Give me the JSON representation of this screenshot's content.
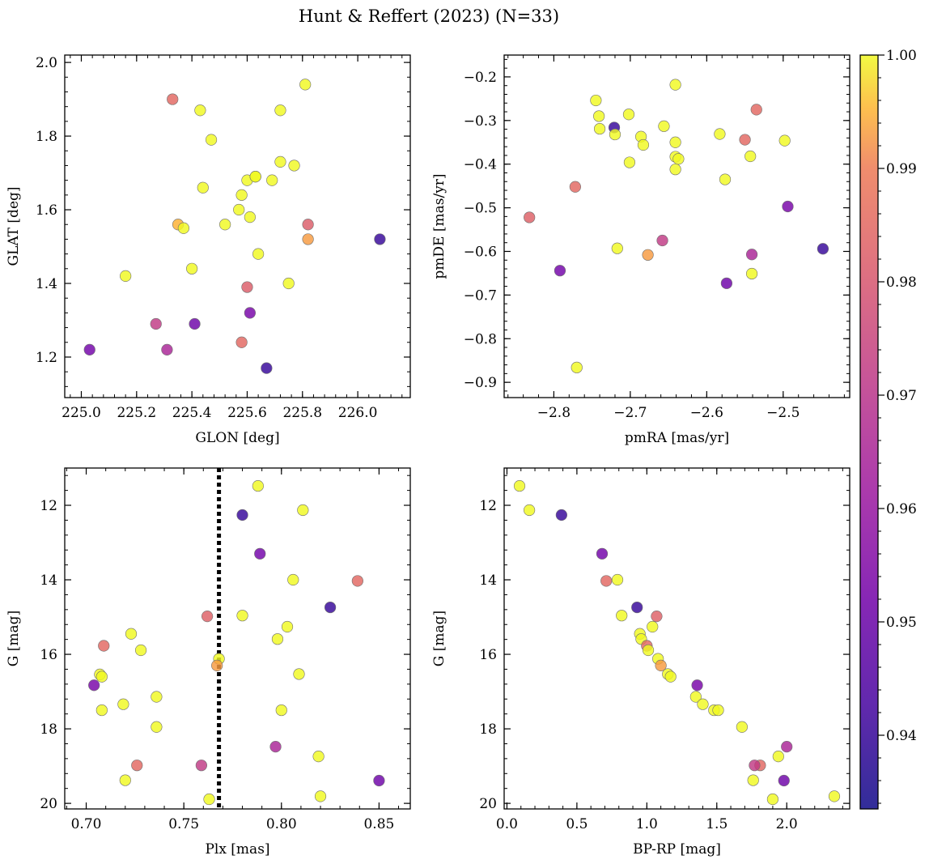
{
  "figure": {
    "title": "Hunt & Reffert (2023) (N=33)"
  },
  "colorbar": {
    "range": [
      0.9335,
      1.0
    ],
    "ticks": [
      0.94,
      0.95,
      0.96,
      0.97,
      0.98,
      0.99,
      1.0
    ],
    "tick_labels": [
      "0.94",
      "0.95",
      "0.96",
      "0.97",
      "0.98",
      "0.99",
      "1.00"
    ],
    "colormap": "plasma"
  },
  "chart_data": [
    {
      "type": "scatter",
      "title": "",
      "xlabel": "GLON [deg]",
      "ylabel": "GLAT [deg]",
      "xlim": [
        224.94,
        226.19
      ],
      "ylim": [
        1.09,
        2.02
      ],
      "yinvert": false,
      "xticks": [
        225.0,
        225.2,
        225.4,
        225.6,
        225.8,
        226.0
      ],
      "xtick_labels": [
        "225.0",
        "225.2",
        "225.4",
        "225.6",
        "225.8",
        "226.0"
      ],
      "yticks": [
        1.2,
        1.4,
        1.6,
        1.8,
        2.0
      ],
      "ytick_labels": [
        "1.2",
        "1.4",
        "1.6",
        "1.8",
        "2.0"
      ],
      "points": [
        {
          "x": 225.03,
          "y": 1.22,
          "c": 0.952
        },
        {
          "x": 225.16,
          "y": 1.42,
          "c": 1.0
        },
        {
          "x": 225.27,
          "y": 1.29,
          "c": 0.972
        },
        {
          "x": 225.31,
          "y": 1.22,
          "c": 0.965
        },
        {
          "x": 225.33,
          "y": 1.9,
          "c": 0.985
        },
        {
          "x": 225.35,
          "y": 1.56,
          "c": 0.995
        },
        {
          "x": 225.37,
          "y": 1.55,
          "c": 1.0
        },
        {
          "x": 225.4,
          "y": 1.44,
          "c": 1.0
        },
        {
          "x": 225.41,
          "y": 1.29,
          "c": 0.951
        },
        {
          "x": 225.43,
          "y": 1.87,
          "c": 1.0
        },
        {
          "x": 225.44,
          "y": 1.66,
          "c": 1.0
        },
        {
          "x": 225.47,
          "y": 1.79,
          "c": 1.0
        },
        {
          "x": 225.52,
          "y": 1.56,
          "c": 1.0
        },
        {
          "x": 225.57,
          "y": 1.6,
          "c": 1.0
        },
        {
          "x": 225.58,
          "y": 1.64,
          "c": 1.0
        },
        {
          "x": 225.58,
          "y": 1.24,
          "c": 0.985
        },
        {
          "x": 225.6,
          "y": 1.68,
          "c": 1.0
        },
        {
          "x": 225.6,
          "y": 1.39,
          "c": 0.982
        },
        {
          "x": 225.61,
          "y": 1.58,
          "c": 1.0
        },
        {
          "x": 225.61,
          "y": 1.32,
          "c": 0.953
        },
        {
          "x": 225.63,
          "y": 1.69,
          "c": 1.0
        },
        {
          "x": 225.63,
          "y": 1.69,
          "c": 1.0
        },
        {
          "x": 225.64,
          "y": 1.48,
          "c": 1.0
        },
        {
          "x": 225.67,
          "y": 1.17,
          "c": 0.94
        },
        {
          "x": 225.69,
          "y": 1.68,
          "c": 1.0
        },
        {
          "x": 225.72,
          "y": 1.87,
          "c": 1.0
        },
        {
          "x": 225.72,
          "y": 1.73,
          "c": 1.0
        },
        {
          "x": 225.75,
          "y": 1.4,
          "c": 1.0
        },
        {
          "x": 225.77,
          "y": 1.72,
          "c": 1.0
        },
        {
          "x": 225.81,
          "y": 1.94,
          "c": 1.0
        },
        {
          "x": 225.82,
          "y": 1.56,
          "c": 0.982
        },
        {
          "x": 225.82,
          "y": 1.52,
          "c": 0.993
        },
        {
          "x": 226.08,
          "y": 1.52,
          "c": 0.94
        }
      ]
    },
    {
      "type": "scatter",
      "title": "",
      "xlabel": "pmRA [mas/yr]",
      "ylabel": "pmDE [mas/yr]",
      "xlim": [
        -2.865,
        -2.413
      ],
      "ylim": [
        -0.935,
        -0.15
      ],
      "yinvert": false,
      "xticks": [
        -2.8,
        -2.7,
        -2.6,
        -2.5
      ],
      "xtick_labels": [
        "−2.8",
        "−2.7",
        "−2.6",
        "−2.5"
      ],
      "yticks": [
        -0.9,
        -0.8,
        -0.7,
        -0.6,
        -0.5,
        -0.4,
        -0.3,
        -0.2
      ],
      "ytick_labels": [
        "−0.9",
        "−0.8",
        "−0.7",
        "−0.6",
        "−0.5",
        "−0.4",
        "−0.3",
        "−0.2"
      ],
      "points": [
        {
          "x": -2.832,
          "y": -0.522,
          "c": 0.983
        },
        {
          "x": -2.792,
          "y": -0.644,
          "c": 0.952
        },
        {
          "x": -2.772,
          "y": -0.452,
          "c": 0.985
        },
        {
          "x": -2.77,
          "y": -0.866,
          "c": 1.0
        },
        {
          "x": -2.745,
          "y": -0.254,
          "c": 1.0
        },
        {
          "x": -2.741,
          "y": -0.29,
          "c": 1.0
        },
        {
          "x": -2.74,
          "y": -0.319,
          "c": 1.0
        },
        {
          "x": -2.721,
          "y": -0.316,
          "c": 0.94
        },
        {
          "x": -2.72,
          "y": -0.332,
          "c": 1.0
        },
        {
          "x": -2.717,
          "y": -0.593,
          "c": 1.0
        },
        {
          "x": -2.702,
          "y": -0.286,
          "c": 1.0
        },
        {
          "x": -2.701,
          "y": -0.396,
          "c": 1.0
        },
        {
          "x": -2.686,
          "y": -0.337,
          "c": 1.0
        },
        {
          "x": -2.683,
          "y": -0.356,
          "c": 1.0
        },
        {
          "x": -2.677,
          "y": -0.608,
          "c": 0.993
        },
        {
          "x": -2.658,
          "y": -0.575,
          "c": 0.972
        },
        {
          "x": -2.656,
          "y": -0.313,
          "c": 1.0
        },
        {
          "x": -2.641,
          "y": -0.218,
          "c": 1.0
        },
        {
          "x": -2.641,
          "y": -0.35,
          "c": 1.0
        },
        {
          "x": -2.641,
          "y": -0.383,
          "c": 1.0
        },
        {
          "x": -2.641,
          "y": -0.412,
          "c": 1.0
        },
        {
          "x": -2.637,
          "y": -0.388,
          "c": 1.0
        },
        {
          "x": -2.583,
          "y": -0.331,
          "c": 1.0
        },
        {
          "x": -2.576,
          "y": -0.435,
          "c": 1.0
        },
        {
          "x": -2.574,
          "y": -0.673,
          "c": 0.951
        },
        {
          "x": -2.55,
          "y": -0.344,
          "c": 0.985
        },
        {
          "x": -2.543,
          "y": -0.382,
          "c": 1.0
        },
        {
          "x": -2.541,
          "y": -0.607,
          "c": 0.965
        },
        {
          "x": -2.541,
          "y": -0.651,
          "c": 1.0
        },
        {
          "x": -2.535,
          "y": -0.275,
          "c": 0.985
        },
        {
          "x": -2.498,
          "y": -0.346,
          "c": 1.0
        },
        {
          "x": -2.494,
          "y": -0.497,
          "c": 0.953
        },
        {
          "x": -2.448,
          "y": -0.594,
          "c": 0.94
        }
      ]
    },
    {
      "type": "scatter",
      "title": "",
      "xlabel": "Plx [mas]",
      "ylabel": "G [mag]",
      "xlim": [
        0.689,
        0.866
      ],
      "ylim": [
        11.0,
        20.15
      ],
      "yinvert": true,
      "xticks": [
        0.7,
        0.75,
        0.8,
        0.85
      ],
      "xtick_labels": [
        "0.70",
        "0.75",
        "0.80",
        "0.85"
      ],
      "yticks": [
        12,
        14,
        16,
        18,
        20
      ],
      "ytick_labels": [
        "12",
        "14",
        "16",
        "18",
        "20"
      ],
      "vline": {
        "x": 0.768,
        "style": "dotted"
      },
      "points": [
        {
          "x": 0.788,
          "y": 11.48,
          "c": 1.0
        },
        {
          "x": 0.811,
          "y": 12.13,
          "c": 1.0
        },
        {
          "x": 0.78,
          "y": 12.26,
          "c": 0.94
        },
        {
          "x": 0.789,
          "y": 13.3,
          "c": 0.952
        },
        {
          "x": 0.806,
          "y": 14.0,
          "c": 1.0
        },
        {
          "x": 0.839,
          "y": 14.03,
          "c": 0.985
        },
        {
          "x": 0.825,
          "y": 14.74,
          "c": 0.94
        },
        {
          "x": 0.762,
          "y": 14.98,
          "c": 0.983
        },
        {
          "x": 0.78,
          "y": 14.96,
          "c": 1.0
        },
        {
          "x": 0.803,
          "y": 15.26,
          "c": 1.0
        },
        {
          "x": 0.723,
          "y": 15.45,
          "c": 1.0
        },
        {
          "x": 0.798,
          "y": 15.59,
          "c": 1.0
        },
        {
          "x": 0.709,
          "y": 15.77,
          "c": 0.985
        },
        {
          "x": 0.728,
          "y": 15.89,
          "c": 1.0
        },
        {
          "x": 0.768,
          "y": 16.12,
          "c": 1.0
        },
        {
          "x": 0.767,
          "y": 16.3,
          "c": 0.993
        },
        {
          "x": 0.809,
          "y": 16.53,
          "c": 1.0
        },
        {
          "x": 0.707,
          "y": 16.54,
          "c": 1.0
        },
        {
          "x": 0.708,
          "y": 16.6,
          "c": 1.0
        },
        {
          "x": 0.704,
          "y": 16.83,
          "c": 0.953
        },
        {
          "x": 0.736,
          "y": 17.14,
          "c": 1.0
        },
        {
          "x": 0.719,
          "y": 17.34,
          "c": 1.0
        },
        {
          "x": 0.708,
          "y": 17.5,
          "c": 1.0
        },
        {
          "x": 0.8,
          "y": 17.5,
          "c": 1.0
        },
        {
          "x": 0.736,
          "y": 17.95,
          "c": 1.0
        },
        {
          "x": 0.797,
          "y": 18.48,
          "c": 0.965
        },
        {
          "x": 0.819,
          "y": 18.74,
          "c": 1.0
        },
        {
          "x": 0.726,
          "y": 18.98,
          "c": 0.985
        },
        {
          "x": 0.759,
          "y": 18.98,
          "c": 0.972
        },
        {
          "x": 0.72,
          "y": 19.38,
          "c": 1.0
        },
        {
          "x": 0.85,
          "y": 19.39,
          "c": 0.951
        },
        {
          "x": 0.763,
          "y": 19.89,
          "c": 1.0
        },
        {
          "x": 0.82,
          "y": 19.81,
          "c": 1.0
        }
      ]
    },
    {
      "type": "scatter",
      "title": "",
      "xlabel": "BP-RP [mag]",
      "ylabel": "G [mag]",
      "xlim": [
        -0.02,
        2.45
      ],
      "ylim": [
        11.0,
        20.15
      ],
      "yinvert": true,
      "xticks": [
        0.0,
        0.5,
        1.0,
        1.5,
        2.0
      ],
      "xtick_labels": [
        "0.0",
        "0.5",
        "1.0",
        "1.5",
        "2.0"
      ],
      "yticks": [
        12,
        14,
        16,
        18,
        20
      ],
      "ytick_labels": [
        "12",
        "14",
        "16",
        "18",
        "20"
      ],
      "points": [
        {
          "x": 0.09,
          "y": 11.48,
          "c": 1.0
        },
        {
          "x": 0.16,
          "y": 12.13,
          "c": 1.0
        },
        {
          "x": 0.39,
          "y": 12.26,
          "c": 0.94
        },
        {
          "x": 0.68,
          "y": 13.3,
          "c": 0.952
        },
        {
          "x": 0.71,
          "y": 14.03,
          "c": 0.985
        },
        {
          "x": 0.79,
          "y": 14.0,
          "c": 1.0
        },
        {
          "x": 0.93,
          "y": 14.74,
          "c": 0.94
        },
        {
          "x": 0.82,
          "y": 14.96,
          "c": 1.0
        },
        {
          "x": 1.07,
          "y": 14.98,
          "c": 0.983
        },
        {
          "x": 1.04,
          "y": 15.26,
          "c": 1.0
        },
        {
          "x": 0.95,
          "y": 15.45,
          "c": 1.0
        },
        {
          "x": 0.96,
          "y": 15.59,
          "c": 1.0
        },
        {
          "x": 1.0,
          "y": 15.77,
          "c": 0.985
        },
        {
          "x": 1.01,
          "y": 15.89,
          "c": 1.0
        },
        {
          "x": 1.08,
          "y": 16.12,
          "c": 1.0
        },
        {
          "x": 1.1,
          "y": 16.3,
          "c": 0.993
        },
        {
          "x": 1.15,
          "y": 16.53,
          "c": 1.0
        },
        {
          "x": 1.17,
          "y": 16.6,
          "c": 1.0
        },
        {
          "x": 1.36,
          "y": 16.83,
          "c": 0.953
        },
        {
          "x": 1.35,
          "y": 17.14,
          "c": 1.0
        },
        {
          "x": 1.4,
          "y": 17.34,
          "c": 1.0
        },
        {
          "x": 1.48,
          "y": 17.5,
          "c": 1.0
        },
        {
          "x": 1.51,
          "y": 17.5,
          "c": 1.0
        },
        {
          "x": 1.68,
          "y": 17.95,
          "c": 1.0
        },
        {
          "x": 2.0,
          "y": 18.48,
          "c": 0.965
        },
        {
          "x": 1.94,
          "y": 18.74,
          "c": 1.0
        },
        {
          "x": 1.81,
          "y": 18.98,
          "c": 0.985
        },
        {
          "x": 1.77,
          "y": 18.98,
          "c": 0.972
        },
        {
          "x": 1.76,
          "y": 19.38,
          "c": 1.0
        },
        {
          "x": 1.98,
          "y": 19.39,
          "c": 0.951
        },
        {
          "x": 1.9,
          "y": 19.89,
          "c": 1.0
        },
        {
          "x": 2.34,
          "y": 19.81,
          "c": 1.0
        }
      ]
    }
  ]
}
